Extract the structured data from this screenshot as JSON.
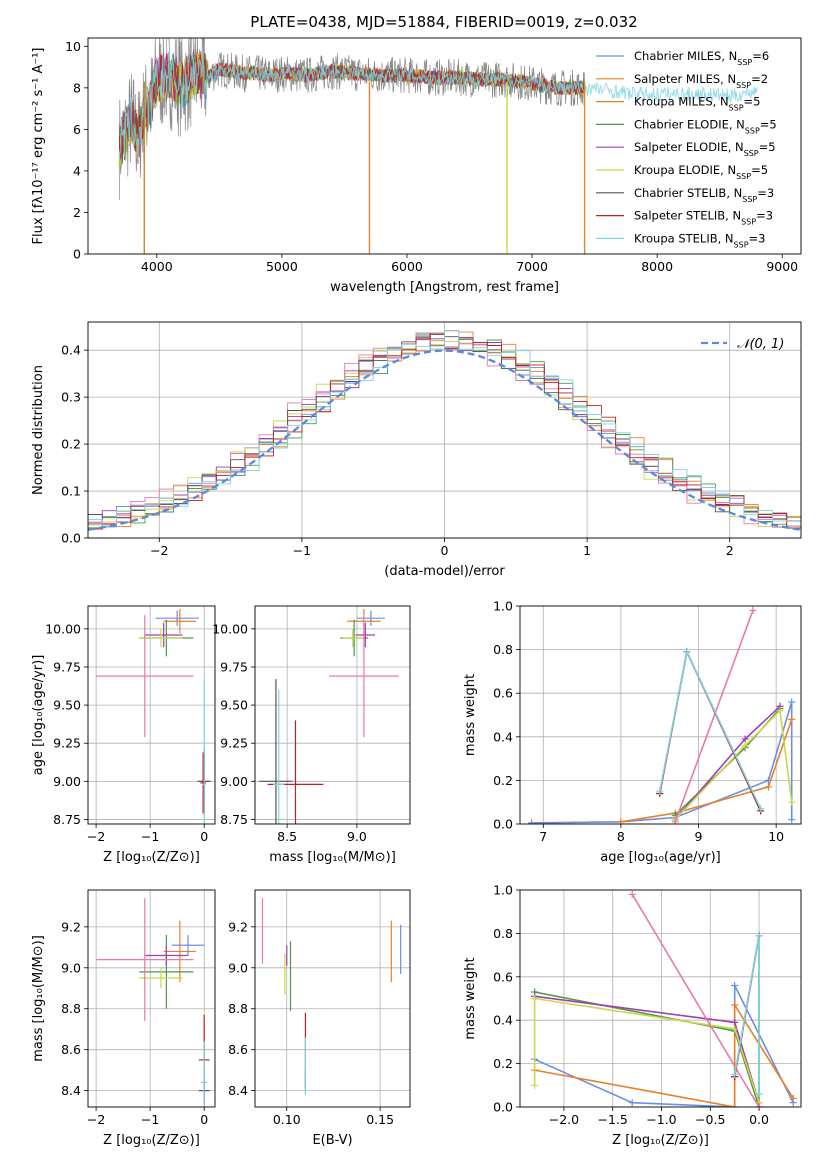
{
  "figure": {
    "title": "PLATE=0438, MJD=51884, FIBERID=0019, z=0.032"
  },
  "colors": {
    "grid": "#b0b0b0",
    "axis": "#000000",
    "cmiles": "#6b8fe0",
    "smiles": "#e8802a",
    "kmiles": "#c98a2a",
    "celodie": "#4a9a4a",
    "selodie": "#a040b0",
    "kelodie": "#c8d84a",
    "cstelib": "#555555",
    "sstelib": "#c02020",
    "kstelib": "#7fd3e0",
    "pink": "#e87aa8",
    "gray": "#888888"
  },
  "chart_data": [
    {
      "id": "spectrum",
      "type": "line",
      "title": "PLATE=0438, MJD=51884, FIBERID=0019, z=0.032",
      "xlabel": "wavelength [Angstrom, rest frame]",
      "ylabel": "Flux [fλ10⁻¹⁷ erg cm⁻² s⁻¹ A⁻¹]",
      "xlim": [
        3450,
        9150
      ],
      "ylim": [
        0,
        10.4
      ],
      "xticks": [
        4000,
        5000,
        6000,
        7000,
        8000,
        9000
      ],
      "yticks": [
        0,
        2,
        4,
        6,
        8,
        10
      ],
      "grid": false,
      "legend_position": "upper-right",
      "legend": [
        {
          "label": "Chabrier MILES, N",
          "sub": "SSP",
          "suffix": "=6",
          "color": "#6b8fe0"
        },
        {
          "label": "Salpeter MILES, N",
          "sub": "SSP",
          "suffix": "=2",
          "color": "#e8802a"
        },
        {
          "label": "Kroupa MILES, N",
          "sub": "SSP",
          "suffix": "=5",
          "color": "#c98a2a"
        },
        {
          "label": "Chabrier ELODIE, N",
          "sub": "SSP",
          "suffix": "=5",
          "color": "#4a9a4a"
        },
        {
          "label": "Salpeter ELODIE, N",
          "sub": "SSP",
          "suffix": "=5",
          "color": "#a040b0"
        },
        {
          "label": "Kroupa ELODIE, N",
          "sub": "SSP",
          "suffix": "=5",
          "color": "#c8d84a"
        },
        {
          "label": "Chabrier STELIB, N",
          "sub": "SSP",
          "suffix": "=3",
          "color": "#555555"
        },
        {
          "label": "Salpeter STELIB, N",
          "sub": "SSP",
          "suffix": "=3",
          "color": "#c02020"
        },
        {
          "label": "Kroupa STELIB, N",
          "sub": "SSP",
          "suffix": "=3",
          "color": "#7fd3e0"
        }
      ],
      "anchors": {
        "x": [
          3700,
          3750,
          3800,
          3850,
          3900,
          3950,
          4000,
          4100,
          4200,
          4300,
          4400,
          4500,
          4600,
          4700,
          4800,
          4900,
          5000,
          5200,
          5400,
          5600,
          5800,
          6000,
          6200,
          6400,
          6600,
          6800,
          7000,
          7200,
          7400,
          7600,
          7800,
          8000,
          8200,
          8400,
          8600,
          8800
        ],
        "y": [
          5.2,
          5.8,
          6.5,
          5.5,
          6.8,
          7.2,
          8.4,
          8.6,
          8.1,
          8.7,
          8.5,
          8.9,
          8.8,
          8.7,
          8.7,
          8.6,
          8.7,
          8.6,
          8.8,
          8.7,
          8.6,
          8.6,
          8.5,
          8.5,
          8.4,
          8.4,
          8.2,
          8.0,
          8.0,
          7.9,
          7.7,
          7.7,
          7.7,
          7.7,
          7.6,
          7.9
        ]
      },
      "drops": [
        {
          "x": 3900,
          "color": "#c98a2a"
        },
        {
          "x": 5700,
          "color": "#e8802a"
        },
        {
          "x": 6800,
          "color": "#c8d84a"
        },
        {
          "x": 7420,
          "color": "#e8802a"
        }
      ]
    },
    {
      "id": "residuals",
      "type": "line",
      "xlabel": "(data-model)/error",
      "ylabel": "Normed distribution",
      "xlim": [
        -2.5,
        2.5
      ],
      "ylim": [
        0,
        0.46
      ],
      "xticks": [
        -2,
        -1,
        0,
        1,
        2
      ],
      "yticks": [
        0.0,
        0.1,
        0.2,
        0.3,
        0.4
      ],
      "grid": true,
      "legend_position": "upper-right",
      "legend": [
        {
          "label": "𝒩(0, 1)",
          "color": "#5a8ae0",
          "style": "dashed"
        }
      ],
      "curve": {
        "name": "𝒩(0, 1)",
        "mu": 0,
        "sigma": 1
      }
    },
    {
      "id": "age-vs-z",
      "type": "scatter",
      "xlabel": "Z [log₁₀(Z/Z⊙)]",
      "ylabel": "age  [log₁₀(age/yr)]",
      "xlim": [
        -2.15,
        0.2
      ],
      "ylim": [
        8.72,
        10.15
      ],
      "xticks": [
        -2,
        -1,
        0
      ],
      "yticks": [
        8.75,
        9.0,
        9.25,
        9.5,
        9.75,
        10.0
      ],
      "grid": true,
      "points": [
        {
          "x": -0.5,
          "y": 10.07,
          "xerr": 0.4,
          "yerr": 0.05,
          "color": "#6b8fe0"
        },
        {
          "x": -0.45,
          "y": 10.05,
          "xerr": 0.3,
          "yerr": 0.08,
          "color": "#e8802a"
        },
        {
          "x": -0.7,
          "y": 9.94,
          "xerr": 0.5,
          "yerr": 0.12,
          "color": "#4a9a4a"
        },
        {
          "x": -0.75,
          "y": 9.96,
          "xerr": 0.35,
          "yerr": 0.08,
          "color": "#a040b0"
        },
        {
          "x": -0.8,
          "y": 9.94,
          "xerr": 0.4,
          "yerr": 0.06,
          "color": "#c8d84a"
        },
        {
          "x": -1.1,
          "y": 9.69,
          "xerr": 0.9,
          "yerr": 0.4,
          "color": "#e87aa8"
        },
        {
          "x": 0.0,
          "y": 9.0,
          "xerr": 0.12,
          "yerr": 0.22,
          "color": "#555555"
        },
        {
          "x": -0.02,
          "y": 8.99,
          "xerr": 0.05,
          "yerr": 0.2,
          "color": "#c02020"
        },
        {
          "x": 0.0,
          "y": 8.98,
          "xerr": 0.03,
          "yerr": 0.68,
          "color": "#7fd3e0"
        }
      ]
    },
    {
      "id": "age-vs-mass",
      "type": "scatter",
      "xlabel": "mass [log₁₀(M/M⊙)]",
      "ylabel": "",
      "xlim": [
        8.27,
        9.38
      ],
      "ylim": [
        8.72,
        10.15
      ],
      "xticks": [
        8.5,
        9.0
      ],
      "yticks": [
        8.75,
        9.0,
        9.25,
        9.5,
        9.75,
        10.0
      ],
      "grid": true,
      "points": [
        {
          "x": 9.1,
          "y": 10.07,
          "xerr": 0.1,
          "yerr": 0.05,
          "color": "#6b8fe0"
        },
        {
          "x": 9.05,
          "y": 10.05,
          "xerr": 0.12,
          "yerr": 0.08,
          "color": "#e8802a"
        },
        {
          "x": 8.98,
          "y": 9.94,
          "xerr": 0.1,
          "yerr": 0.12,
          "color": "#4a9a4a"
        },
        {
          "x": 9.06,
          "y": 9.96,
          "xerr": 0.07,
          "yerr": 0.08,
          "color": "#a040b0"
        },
        {
          "x": 8.97,
          "y": 9.94,
          "xerr": 0.08,
          "yerr": 0.06,
          "color": "#c8d84a"
        },
        {
          "x": 9.05,
          "y": 9.69,
          "xerr": 0.25,
          "yerr": 0.4,
          "color": "#e87aa8"
        },
        {
          "x": 8.42,
          "y": 9.0,
          "xerr": 0.12,
          "yerr": 0.67,
          "color": "#555555"
        },
        {
          "x": 8.56,
          "y": 8.98,
          "xerr": 0.2,
          "yerr": 0.42,
          "color": "#c02020"
        },
        {
          "x": 8.44,
          "y": 8.98,
          "xerr": 0.04,
          "yerr": 0.62,
          "color": "#7fd3e0"
        }
      ]
    },
    {
      "id": "weight-vs-age",
      "type": "line",
      "xlabel": "age  [log₁₀(age/yr)]",
      "ylabel": "mass weight",
      "xlim": [
        6.7,
        10.32
      ],
      "ylim": [
        0,
        1.0
      ],
      "xticks": [
        7,
        8,
        9,
        10
      ],
      "yticks": [
        0.0,
        0.2,
        0.4,
        0.6,
        0.8,
        1.0
      ],
      "grid": true,
      "series": [
        {
          "color": "#6b8fe0",
          "x": [
            6.85,
            8.0,
            8.7,
            9.9,
            10.2,
            10.2
          ],
          "y": [
            0.005,
            0.01,
            0.03,
            0.2,
            0.56,
            0.02
          ]
        },
        {
          "color": "#e8802a",
          "x": [
            8.0,
            8.7,
            9.9,
            10.2
          ],
          "y": [
            0.01,
            0.05,
            0.17,
            0.48
          ]
        },
        {
          "color": "#4a9a4a",
          "x": [
            8.7,
            9.6,
            10.05
          ],
          "y": [
            0.04,
            0.35,
            0.53
          ]
        },
        {
          "color": "#a040b0",
          "x": [
            8.7,
            9.6,
            10.05
          ],
          "y": [
            0.02,
            0.39,
            0.54
          ]
        },
        {
          "color": "#c8d84a",
          "x": [
            8.7,
            9.6,
            10.05,
            10.2
          ],
          "y": [
            0.02,
            0.36,
            0.52,
            0.1
          ]
        },
        {
          "color": "#e87aa8",
          "x": [
            8.7,
            9.7
          ],
          "y": [
            0.01,
            0.98
          ]
        },
        {
          "color": "#555555",
          "x": [
            8.5,
            8.85,
            9.8
          ],
          "y": [
            0.14,
            0.79,
            0.06
          ]
        },
        {
          "color": "#c02020",
          "x": [
            8.5,
            8.85,
            9.8
          ],
          "y": [
            0.14,
            0.79,
            0.06
          ]
        },
        {
          "color": "#7fd3e0",
          "x": [
            8.5,
            8.85,
            9.8
          ],
          "y": [
            0.15,
            0.79,
            0.07
          ]
        }
      ]
    },
    {
      "id": "mass-vs-z",
      "type": "scatter",
      "xlabel": "Z [log₁₀(Z/Z⊙)]",
      "ylabel": "mass [log₁₀(M/M⊙)]",
      "xlim": [
        -2.15,
        0.2
      ],
      "ylim": [
        8.32,
        9.38
      ],
      "xticks": [
        -2,
        -1,
        0
      ],
      "yticks": [
        8.4,
        8.6,
        8.8,
        9.0,
        9.2
      ],
      "grid": true,
      "points": [
        {
          "x": -0.3,
          "y": 9.11,
          "xerr": 0.3,
          "yerr": 0.05,
          "color": "#6b8fe0"
        },
        {
          "x": -0.45,
          "y": 9.08,
          "xerr": 0.3,
          "yerr": 0.15,
          "color": "#e8802a"
        },
        {
          "x": -0.7,
          "y": 8.98,
          "xerr": 0.5,
          "yerr": 0.18,
          "color": "#4a9a4a"
        },
        {
          "x": -0.7,
          "y": 9.06,
          "xerr": 0.4,
          "yerr": 0.05,
          "color": "#a040b0"
        },
        {
          "x": -0.8,
          "y": 8.95,
          "xerr": 0.4,
          "yerr": 0.05,
          "color": "#c8d84a"
        },
        {
          "x": -1.1,
          "y": 9.04,
          "xerr": 0.9,
          "yerr": 0.3,
          "color": "#e87aa8"
        },
        {
          "x": 0.0,
          "y": 8.4,
          "xerr": 0.1,
          "yerr": 0.05,
          "color": "#555555"
        },
        {
          "x": 0.0,
          "y": 8.55,
          "xerr": 0.1,
          "yerr": 0.22,
          "color": "#c02020"
        },
        {
          "x": 0.0,
          "y": 8.44,
          "xerr": 0.06,
          "yerr": 0.2,
          "color": "#7fd3e0"
        }
      ]
    },
    {
      "id": "mass-vs-ebv",
      "type": "scatter",
      "xlabel": "E(B-V)",
      "ylabel": "",
      "xlim": [
        0.083,
        0.166
      ],
      "ylim": [
        8.32,
        9.38
      ],
      "xticks": [
        0.1,
        0.15
      ],
      "yticks": [
        8.4,
        8.6,
        8.8,
        9.0,
        9.2
      ],
      "grid": true,
      "points": [
        {
          "x": 0.161,
          "y": 9.09,
          "xerr": 0.0,
          "yerr": 0.12,
          "color": "#6b8fe0"
        },
        {
          "x": 0.156,
          "y": 9.08,
          "xerr": 0.0,
          "yerr": 0.15,
          "color": "#e8802a"
        },
        {
          "x": 0.102,
          "y": 8.96,
          "xerr": 0.0,
          "yerr": 0.17,
          "color": "#4a9a4a"
        },
        {
          "x": 0.1,
          "y": 9.06,
          "xerr": 0.0,
          "yerr": 0.05,
          "color": "#a040b0"
        },
        {
          "x": 0.099,
          "y": 8.97,
          "xerr": 0.0,
          "yerr": 0.1,
          "color": "#c8d84a"
        },
        {
          "x": 0.087,
          "y": 9.18,
          "xerr": 0.0,
          "yerr": 0.16,
          "color": "#e87aa8"
        },
        {
          "x": 0.11,
          "y": 8.45,
          "xerr": 0.0,
          "yerr": 0.05,
          "color": "#555555"
        },
        {
          "x": 0.11,
          "y": 8.6,
          "xerr": 0.0,
          "yerr": 0.18,
          "color": "#c02020"
        },
        {
          "x": 0.11,
          "y": 8.52,
          "xerr": 0.0,
          "yerr": 0.14,
          "color": "#7fd3e0"
        }
      ]
    },
    {
      "id": "weight-vs-z",
      "type": "line",
      "xlabel": "Z [log₁₀(Z/Z⊙)]",
      "ylabel": "mass weight",
      "xlim": [
        -2.45,
        0.43
      ],
      "ylim": [
        0,
        1.0
      ],
      "xticks": [
        -2.0,
        -1.5,
        -1.0,
        -0.5,
        0.0
      ],
      "yticks": [
        0.0,
        0.2,
        0.4,
        0.6,
        0.8,
        1.0
      ],
      "grid": true,
      "series": [
        {
          "color": "#6b8fe0",
          "x": [
            -2.3,
            -1.3,
            -0.25,
            -0.25,
            0.35
          ],
          "y": [
            0.22,
            0.02,
            0.0,
            0.56,
            0.02
          ]
        },
        {
          "color": "#e8802a",
          "x": [
            -2.3,
            -0.25,
            -0.25,
            0.35
          ],
          "y": [
            0.17,
            0.0,
            0.47,
            0.04
          ]
        },
        {
          "color": "#4a9a4a",
          "x": [
            -2.3,
            -0.25,
            0.0,
            0.0
          ],
          "y": [
            0.53,
            0.35,
            0.0,
            0.79
          ]
        },
        {
          "color": "#a040b0",
          "x": [
            -2.3,
            -0.25,
            0.0
          ],
          "y": [
            0.51,
            0.39,
            0.02
          ]
        },
        {
          "color": "#c8d84a",
          "x": [
            -2.3,
            -2.3,
            -0.25,
            0.0
          ],
          "y": [
            0.1,
            0.5,
            0.36,
            0.02
          ]
        },
        {
          "color": "#e87aa8",
          "x": [
            -1.3,
            0.0
          ],
          "y": [
            0.98,
            0.0
          ]
        },
        {
          "color": "#555555",
          "x": [
            -0.25,
            0.0
          ],
          "y": [
            0.14,
            0.79
          ]
        },
        {
          "color": "#c02020",
          "x": [
            -0.25,
            0.0
          ],
          "y": [
            0.14,
            0.79
          ]
        },
        {
          "color": "#7fd3e0",
          "x": [
            -0.25,
            0.0,
            0.0
          ],
          "y": [
            0.15,
            0.79,
            0.06
          ]
        }
      ]
    }
  ]
}
